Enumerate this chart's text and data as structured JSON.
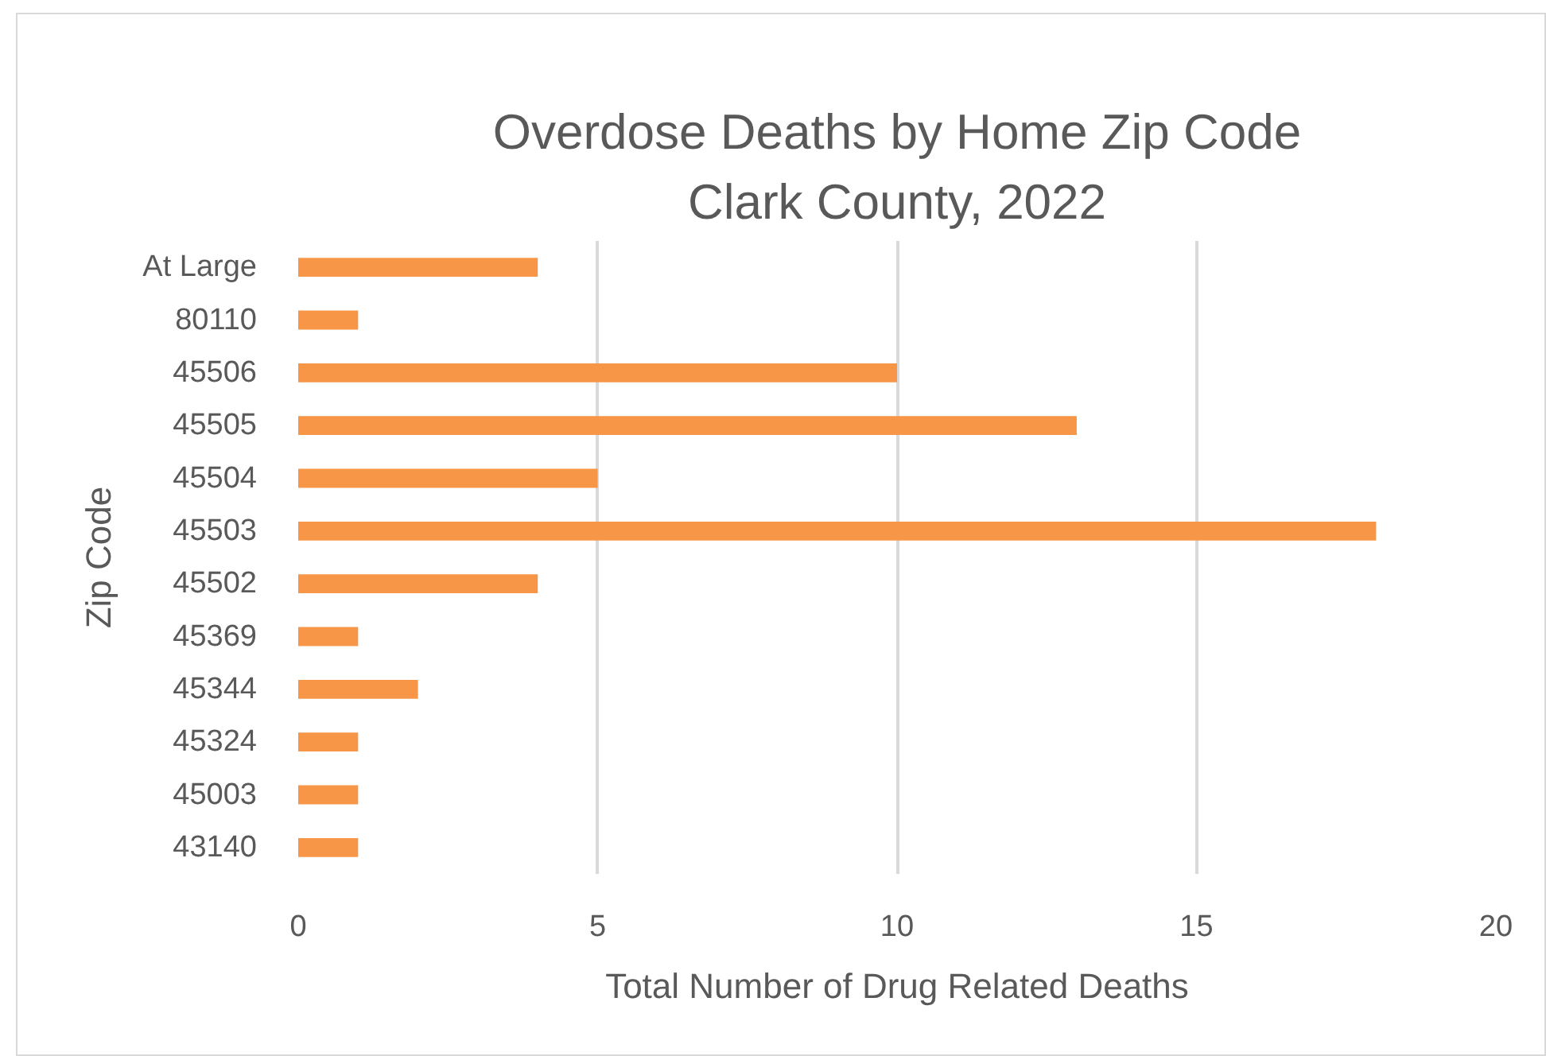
{
  "chart_data": {
    "type": "bar",
    "orientation": "horizontal",
    "title": "Overdose Deaths by Home Zip Code",
    "subtitle": "Clark County, 2022",
    "xlabel": "Total Number of Drug Related Deaths",
    "ylabel": "Zip Code",
    "categories": [
      "At Large",
      "80110",
      "45506",
      "45505",
      "45504",
      "45503",
      "45502",
      "45369",
      "45344",
      "45324",
      "45003",
      "43140"
    ],
    "values": [
      4,
      1,
      10,
      13,
      5,
      18,
      4,
      1,
      2,
      1,
      1,
      1
    ],
    "color": "#f79646",
    "xlim": [
      0,
      20
    ],
    "xticks": [
      0,
      5,
      10,
      15,
      20
    ],
    "grid": "x"
  }
}
